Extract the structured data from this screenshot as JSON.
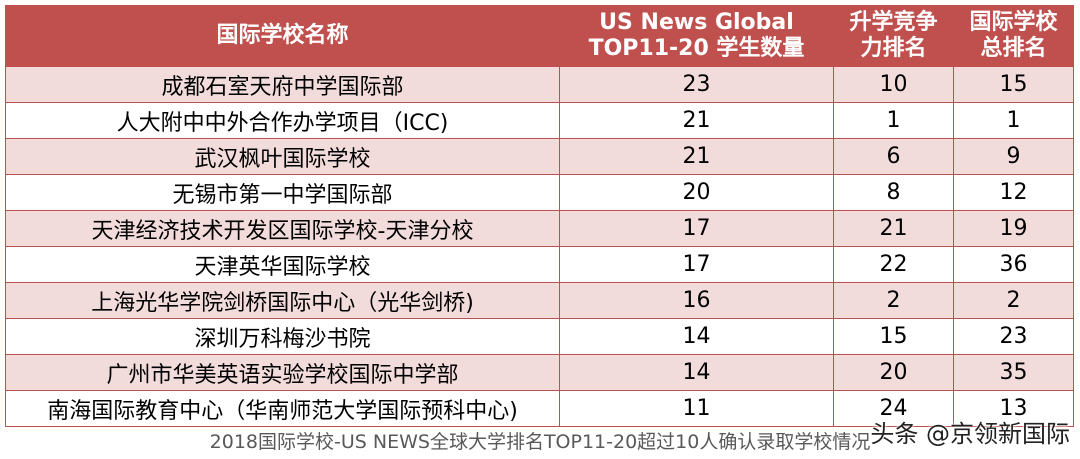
{
  "table": {
    "headers": {
      "school_name": "国际学校名称",
      "students_line1": "US News Global",
      "students_line2": "TOP11-20 学生数量",
      "competition_line1": "升学竞争",
      "competition_line2": "力排名",
      "overall_line1": "国际学校",
      "overall_line2": "总排名"
    },
    "rows": [
      {
        "name": "成都石室天府中学国际部",
        "students": "23",
        "competition_rank": "10",
        "overall_rank": "15"
      },
      {
        "name": "人大附中中外合作办学项目（ICC)",
        "students": "21",
        "competition_rank": "1",
        "overall_rank": "1"
      },
      {
        "name": "武汉枫叶国际学校",
        "students": "21",
        "competition_rank": "6",
        "overall_rank": "9"
      },
      {
        "name": "无锡市第一中学国际部",
        "students": "20",
        "competition_rank": "8",
        "overall_rank": "12"
      },
      {
        "name": "天津经济技术开发区国际学校-天津分校",
        "students": "17",
        "competition_rank": "21",
        "overall_rank": "19"
      },
      {
        "name": "天津英华国际学校",
        "students": "17",
        "competition_rank": "22",
        "overall_rank": "36"
      },
      {
        "name": "上海光华学院剑桥国际中心（光华剑桥)",
        "students": "16",
        "competition_rank": "2",
        "overall_rank": "2"
      },
      {
        "name": "深圳万科梅沙书院",
        "students": "14",
        "competition_rank": "15",
        "overall_rank": "23"
      },
      {
        "name": "广州市华美英语实验学校国际中学部",
        "students": "14",
        "competition_rank": "20",
        "overall_rank": "35"
      },
      {
        "name": "南海国际教育中心（华南师范大学国际预科中心)",
        "students": "11",
        "competition_rank": "24",
        "overall_rank": "13"
      }
    ]
  },
  "caption": "2018国际学校-US NEWS全球大学排名TOP11-20超过10人确认录取学校情况",
  "watermark": "头条 @京领新国际",
  "colors": {
    "header_bg": "#c0504d",
    "header_text": "#ffffff",
    "band_row": "#f2dcdb",
    "plain_row": "#ffffff",
    "border": "#c0504d"
  }
}
